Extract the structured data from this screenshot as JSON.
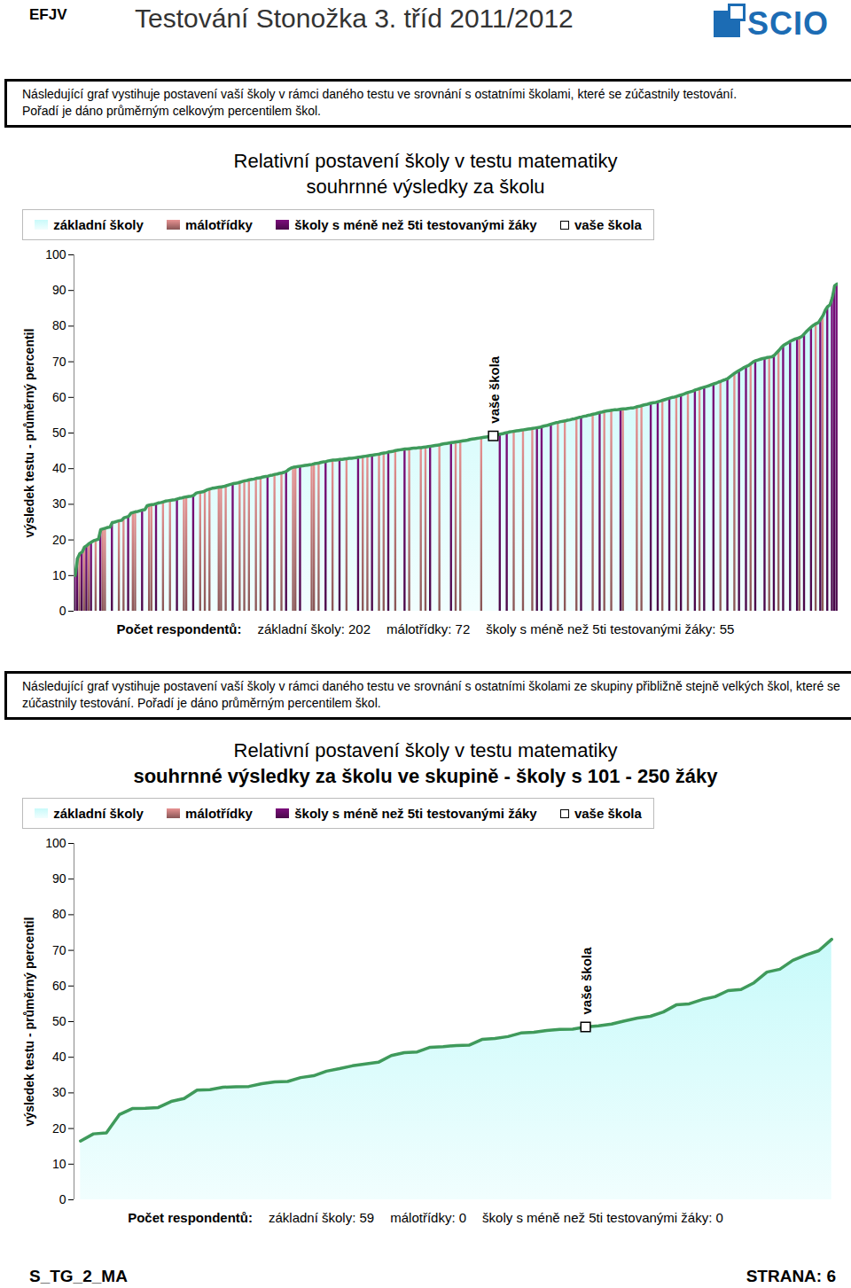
{
  "header": {
    "code": "EFJV",
    "title": "Testování Stonožka 3. tříd 2011/2012",
    "logo": "SCIO"
  },
  "footer": {
    "left": "S_TG_2_MA",
    "right": "STRANA: 6"
  },
  "chart_data": [
    {
      "type": "area",
      "intro": [
        "Následující graf vystihuje postavení vaší školy v rámci daného testu ve srovnání s ostatními školami, které se zúčastnily testování.",
        "Pořadí je dáno průměrným celkovým percentilem škol."
      ],
      "title": "Relativní postavení školy v testu matematiky",
      "subtitle": "souhrnné výsledky za školu",
      "ylabel": "výsledek testu - průměrný percentil",
      "ylim": [
        0,
        100
      ],
      "yticks": [
        0,
        10,
        20,
        30,
        40,
        50,
        60,
        70,
        80,
        90,
        100
      ],
      "tick_labels": "y",
      "series": [
        {
          "name": "základní školy",
          "color": "#c8fafa",
          "type": "area"
        },
        {
          "name": "málotřídky",
          "color": "#a86a6a",
          "type": "bar"
        },
        {
          "name": "školy s méně než 5ti testovanými žáky",
          "color": "#5a0a5a",
          "type": "bar"
        }
      ],
      "values": [
        10.0,
        14.8,
        16.2,
        16.6,
        18.0,
        18.4,
        19.0,
        19.4,
        19.8,
        20.0,
        20.2,
        22.9,
        23.1,
        23.3,
        23.5,
        23.6,
        24.9,
        25.0,
        25.2,
        25.4,
        25.5,
        26.2,
        26.4,
        26.6,
        27.5,
        27.7,
        27.9,
        28.0,
        28.2,
        28.4,
        28.5,
        29.6,
        29.8,
        29.9,
        30.0,
        30.2,
        30.4,
        30.5,
        30.7,
        30.9,
        31.0,
        31.1,
        31.2,
        31.3,
        31.5,
        31.7,
        31.8,
        32.0,
        32.1,
        32.2,
        32.3,
        32.5,
        33.1,
        33.3,
        33.4,
        33.5,
        33.8,
        34.1,
        34.3,
        34.5,
        34.6,
        34.7,
        34.8,
        34.9,
        35.0,
        35.2,
        35.4,
        35.6,
        35.8,
        35.9,
        36.0,
        36.2,
        36.4,
        36.6,
        36.7,
        36.9,
        37.0,
        37.1,
        37.3,
        37.4,
        37.5,
        37.7,
        37.8,
        37.9,
        38.1,
        38.2,
        38.4,
        38.5,
        38.7,
        38.8,
        39.0,
        39.3,
        39.8,
        40.2,
        40.4,
        40.5,
        40.6,
        40.7,
        40.8,
        40.9,
        41.0,
        41.1,
        41.2,
        41.4,
        41.5,
        41.6,
        41.8,
        41.9,
        42.0,
        42.2,
        42.3,
        42.4,
        42.4,
        42.5,
        42.6,
        42.6,
        42.7,
        42.8,
        42.9,
        42.9,
        43.0,
        43.1,
        43.2,
        43.3,
        43.4,
        43.5,
        43.6,
        43.7,
        43.8,
        43.9,
        44.0,
        44.1,
        44.3,
        44.4,
        44.5,
        44.7,
        44.8,
        44.9,
        45.1,
        45.2,
        45.3,
        45.4,
        45.5,
        45.5,
        45.6,
        45.7,
        45.8,
        45.8,
        45.9,
        45.9,
        46.0,
        46.1,
        46.2,
        46.3,
        46.4,
        46.5,
        46.6,
        46.7,
        46.9,
        47.0,
        47.1,
        47.2,
        47.3,
        47.4,
        47.5,
        47.6,
        47.7,
        47.8,
        47.9,
        48.0,
        48.2,
        48.3,
        48.4,
        48.5,
        48.6,
        48.7,
        48.8,
        48.9,
        49.0,
        49.1,
        49.2,
        49.4,
        49.5,
        49.7,
        49.8,
        50.0,
        50.1,
        50.3,
        50.4,
        50.5,
        50.6,
        50.7,
        50.8,
        50.9,
        51.0,
        51.1,
        51.2,
        51.3,
        51.4,
        51.5,
        51.6,
        51.8,
        52.0,
        52.1,
        52.3,
        52.5,
        52.7,
        52.9,
        53.0,
        53.2,
        53.3,
        53.4,
        53.6,
        53.7,
        53.9,
        54.0,
        54.2,
        54.4,
        54.5,
        54.7,
        54.8,
        55.0,
        55.1,
        55.3,
        55.4,
        55.6,
        55.8,
        55.9,
        56.1,
        56.2,
        56.3,
        56.4,
        56.5,
        56.5,
        56.6,
        56.7,
        56.8,
        56.8,
        56.9,
        57.0,
        57.0,
        57.2,
        57.4,
        57.5,
        57.7,
        57.9,
        58.0,
        58.2,
        58.4,
        58.5,
        58.6,
        58.8,
        59.0,
        59.2,
        59.4,
        59.6,
        59.8,
        60.0,
        60.1,
        60.3,
        60.5,
        60.7,
        60.9,
        61.2,
        61.4,
        61.6,
        61.8,
        62.1,
        62.3,
        62.5,
        62.7,
        62.9,
        63.1,
        63.3,
        63.6,
        63.8,
        64.0,
        64.3,
        64.5,
        64.8,
        65.0,
        65.3,
        65.8,
        66.3,
        66.8,
        67.2,
        67.6,
        68.0,
        68.4,
        68.7,
        69.0,
        69.5,
        70.0,
        70.3,
        70.5,
        70.7,
        70.9,
        71.0,
        71.2,
        71.3,
        71.4,
        71.8,
        72.5,
        73.2,
        74.0,
        74.6,
        75.0,
        75.4,
        75.8,
        76.1,
        76.4,
        76.6,
        76.8,
        77.2,
        77.9,
        78.6,
        79.2,
        79.8,
        80.3,
        80.7,
        81.0,
        82.0,
        83.0,
        84.5,
        85.5,
        86.0,
        88.0,
        91.3,
        91.8
      ],
      "school_types": [
        2,
        2,
        1,
        2,
        1,
        2,
        1,
        2,
        0,
        1,
        0,
        2,
        1,
        1,
        0,
        0,
        2,
        0,
        0,
        1,
        0,
        1,
        0,
        2,
        0,
        1,
        1,
        0,
        0,
        2,
        0,
        0,
        1,
        1,
        0,
        2,
        0,
        0,
        1,
        0,
        0,
        1,
        0,
        0,
        2,
        0,
        0,
        1,
        1,
        0,
        0,
        2,
        0,
        0,
        1,
        0,
        1,
        0,
        1,
        0,
        0,
        0,
        1,
        1,
        0,
        1,
        0,
        0,
        2,
        0,
        0,
        1,
        0,
        1,
        0,
        1,
        0,
        0,
        1,
        0,
        1,
        0,
        0,
        2,
        0,
        0,
        1,
        0,
        0,
        1,
        0,
        2,
        0,
        0,
        1,
        1,
        0,
        2,
        0,
        0,
        0,
        0,
        1,
        1,
        0,
        1,
        0,
        0,
        2,
        0,
        0,
        1,
        0,
        0,
        2,
        0,
        0,
        1,
        0,
        0,
        0,
        0,
        2,
        0,
        1,
        0,
        1,
        0,
        2,
        0,
        0,
        1,
        0,
        1,
        0,
        2,
        0,
        0,
        1,
        0,
        0,
        0,
        2,
        0,
        1,
        0,
        0,
        0,
        0,
        1,
        0,
        1,
        0,
        2,
        0,
        0,
        0,
        1,
        0,
        0,
        0,
        0,
        2,
        0,
        1,
        0,
        1,
        0,
        0,
        0,
        0,
        0,
        0,
        0,
        0,
        1,
        0,
        0,
        0,
        0,
        0,
        0,
        0,
        2,
        0,
        0,
        2,
        0,
        0,
        1,
        0,
        0,
        0,
        1,
        0,
        0,
        0,
        1,
        0,
        2,
        0,
        2,
        0,
        0,
        0,
        2,
        0,
        0,
        1,
        0,
        0,
        1,
        0,
        0,
        0,
        0,
        1,
        0,
        2,
        0,
        0,
        0,
        0,
        1,
        0,
        0,
        2,
        0,
        1,
        0,
        0,
        1,
        0,
        0,
        0,
        2,
        1,
        0,
        0,
        0,
        0,
        0,
        1,
        0,
        1,
        0,
        0,
        0,
        2,
        0,
        0,
        2,
        0,
        1,
        0,
        0,
        2,
        0,
        0,
        1,
        0,
        2,
        0,
        0,
        1,
        0,
        0,
        2,
        0,
        1,
        0,
        2,
        0,
        0,
        0,
        2,
        0,
        0,
        1,
        0,
        0,
        2,
        0,
        0,
        1,
        0,
        2,
        0,
        0,
        2,
        0,
        1,
        0,
        2,
        0,
        0,
        0,
        2,
        0,
        1,
        0,
        2,
        0,
        1,
        0,
        2,
        0,
        0,
        2,
        0,
        0,
        2,
        1,
        0,
        2,
        0,
        0,
        2,
        0,
        1,
        0,
        2,
        1,
        0,
        2,
        0,
        2,
        2,
        2
      ],
      "highlight": {
        "index": 180,
        "label": "vaše škola"
      },
      "respondents": [
        "Počet respondentů:",
        "základní školy: 202",
        "málotřídky: 72",
        "školy s méně než 5ti testovanými žáky: 55"
      ]
    },
    {
      "type": "area",
      "intro": [
        "Následující graf vystihuje postavení vaší školy v rámci daného testu ve srovnání s ostatními školami ze skupiny přibližně stejně velkých škol, které se",
        "zúčastnily testování. Pořadí je dáno průměrným percentilem škol."
      ],
      "title": "Relativní postavení školy v testu matematiky",
      "subtitle": "souhrnné výsledky za školu ve skupině - školy s 101 - 250 žáky",
      "ylabel": "výsledek testu - průměrný percentil",
      "ylim": [
        0,
        100
      ],
      "yticks": [
        0,
        10,
        20,
        30,
        40,
        50,
        60,
        70,
        80,
        90,
        100
      ],
      "tick_labels": "y",
      "series": [
        {
          "name": "základní školy",
          "color": "#c8fafa",
          "type": "area"
        },
        {
          "name": "málotřídky",
          "color": "#a86a6a",
          "type": "bar"
        },
        {
          "name": "školy s méně než 5ti testovanými žáky",
          "color": "#5a0a5a",
          "type": "bar"
        }
      ],
      "values": [
        16.5,
        18.5,
        18.8,
        23.9,
        25.6,
        25.7,
        25.9,
        27.6,
        28.4,
        30.8,
        30.9,
        31.6,
        31.7,
        31.8,
        32.6,
        33.1,
        33.2,
        34.3,
        34.8,
        36.1,
        36.8,
        37.6,
        38.1,
        38.6,
        40.5,
        41.3,
        41.5,
        42.8,
        43.0,
        43.3,
        43.4,
        45.0,
        45.3,
        45.8,
        46.8,
        47.0,
        47.5,
        47.8,
        47.9,
        48.5,
        48.8,
        49.3,
        50.2,
        51.0,
        51.5,
        52.7,
        54.7,
        55.0,
        56.2,
        57.0,
        58.7,
        59.0,
        60.9,
        63.9,
        64.7,
        67.2,
        68.7,
        69.9,
        73.1
      ],
      "highlight": {
        "index": 39,
        "label": "vaše škola"
      },
      "respondents": [
        "Počet respondentů:",
        "základní školy: 59",
        "málotřídky: 0",
        "školy s méně než 5ti testovanými žáky: 0"
      ]
    }
  ]
}
